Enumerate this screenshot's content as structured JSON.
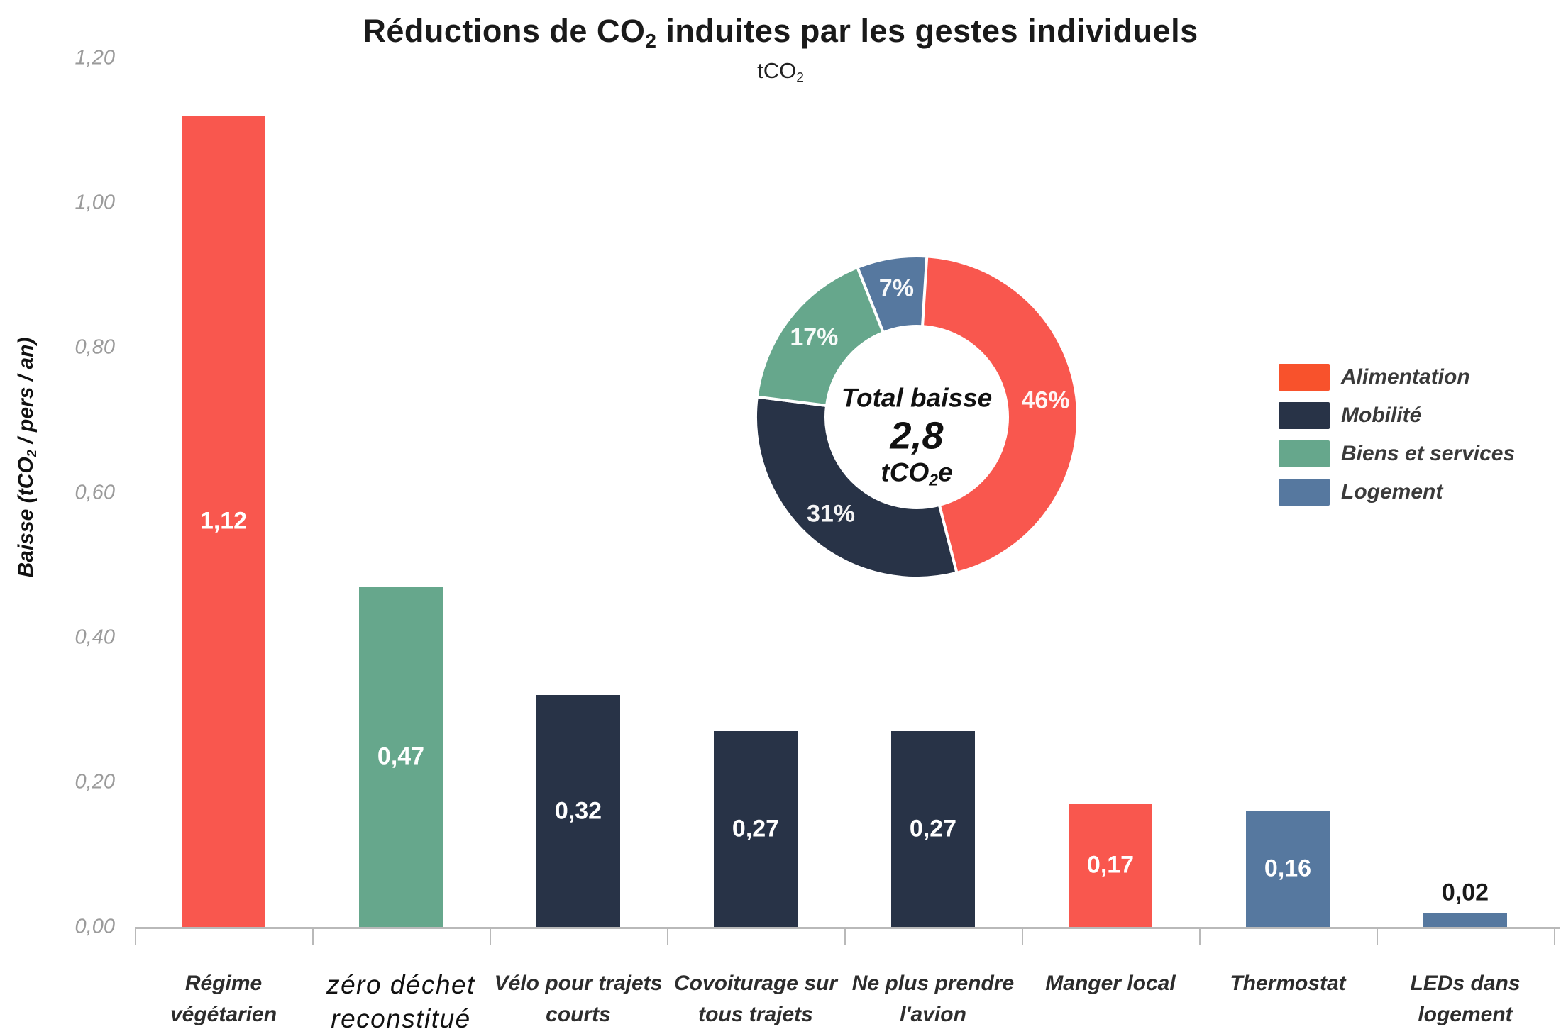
{
  "title": {
    "part1": "Réductions de CO",
    "subscript": "2",
    "part2": " induites par les gestes individuels"
  },
  "subtitle": {
    "part1": "tCO",
    "subscript": "2"
  },
  "y_axis": {
    "title_part1": "Baisse (tCO",
    "title_subscript": "2",
    "title_part2": " / pers / an)",
    "tick_labels": [
      "0,00",
      "0,20",
      "0,40",
      "0,60",
      "0,80",
      "1,00",
      "1,20"
    ],
    "tick_values": [
      0,
      0.2,
      0.4,
      0.6,
      0.8,
      1.0,
      1.2
    ],
    "max_value": 1.2
  },
  "colors": {
    "alimentation": "#F9574E",
    "mobilite": "#283347",
    "biens_et_services": "#66A78C",
    "logement": "#56789F",
    "legend_alimentation_swatch": "#F8522C",
    "axis_line": "#B9B9B9",
    "tick_label_gray": "#9B9B9B",
    "value_label_inside": "#FFFFFF",
    "value_label_outside": "#1A1A1A"
  },
  "chart_data": [
    {
      "type": "bar",
      "title": "Réductions de CO2 induites par les gestes individuels",
      "subtitle": "tCO2",
      "ylabel": "Baisse (tCO2 / pers / an)",
      "ylim": [
        0,
        1.2
      ],
      "grid": false,
      "categories": [
        "Régime végétarien",
        "zéro déchet reconstitué",
        "Vélo pour trajets courts",
        "Covoiturage sur tous trajets",
        "Ne plus prendre l'avion",
        "Manger local",
        "Thermostat",
        "LEDs dans logement"
      ],
      "category_label_lines": [
        [
          "Régime",
          "végétarien"
        ],
        [
          "zéro déchet",
          "reconstitué"
        ],
        [
          "Vélo pour trajets",
          "courts"
        ],
        [
          "Covoiturage sur",
          "tous trajets"
        ],
        [
          "Ne plus prendre",
          "l'avion"
        ],
        [
          "Manger local"
        ],
        [
          "Thermostat"
        ],
        [
          "LEDs dans",
          "logement"
        ]
      ],
      "values": [
        1.12,
        0.47,
        0.32,
        0.27,
        0.27,
        0.17,
        0.16,
        0.02
      ],
      "value_labels": [
        "1,12",
        "0,47",
        "0,32",
        "0,27",
        "0,27",
        "0,17",
        "0,16",
        "0,02"
      ],
      "groups": [
        "alimentation",
        "biens_et_services",
        "mobilite",
        "mobilite",
        "mobilite",
        "alimentation",
        "logement",
        "logement"
      ]
    },
    {
      "type": "pie",
      "donut": true,
      "direction": "clockwise",
      "start_angle_deg": 0,
      "slices": [
        {
          "label": "Alimentation",
          "pct": 46,
          "pct_label": "46%",
          "group": "alimentation"
        },
        {
          "label": "Mobilité",
          "pct": 31,
          "pct_label": "31%",
          "group": "mobilite"
        },
        {
          "label": "Biens et services",
          "pct": 17,
          "pct_label": "17%",
          "group": "biens_et_services"
        },
        {
          "label": "Logement",
          "pct": 7,
          "pct_label": "7%",
          "group": "logement"
        }
      ],
      "center_label": {
        "line1": "Total baisse",
        "line2": "2,8",
        "line3_part1": "tCO",
        "line3_subscript": "2",
        "line3_part2": "e"
      }
    }
  ],
  "legend": {
    "items": [
      {
        "label": "Alimentation",
        "color_key": "legend_alimentation_swatch"
      },
      {
        "label": "Mobilité",
        "color_key": "mobilite"
      },
      {
        "label": "Biens et services",
        "color_key": "biens_et_services"
      },
      {
        "label": "Logement",
        "color_key": "logement"
      }
    ]
  }
}
